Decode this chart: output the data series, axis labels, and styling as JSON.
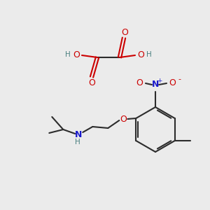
{
  "bg_color": "#ebebeb",
  "C": "#2c2c2c",
  "H": "#4a8080",
  "O": "#cc0000",
  "N_blue": "#1a1acc",
  "figsize": [
    3.0,
    3.0
  ],
  "dpi": 100
}
